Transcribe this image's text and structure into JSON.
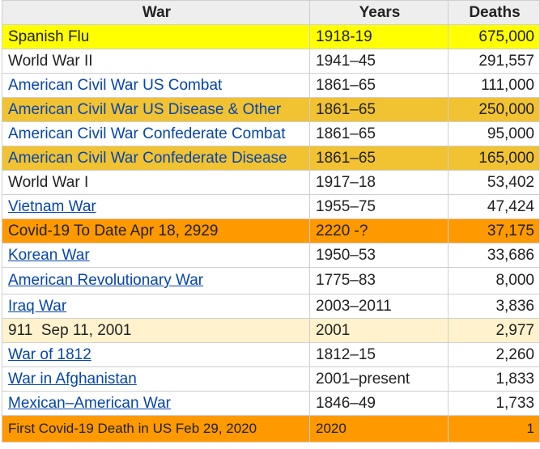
{
  "table": {
    "headers": {
      "war": "War",
      "years": "Years",
      "deaths": "Deaths"
    },
    "rows": [
      {
        "war": "Spanish Flu",
        "years": "1918-19",
        "deaths": "675,000",
        "highlight": "#ffff00",
        "style": "plain"
      },
      {
        "war": "World War II",
        "years": "1941–45",
        "deaths": "291,557",
        "highlight": "none",
        "style": "plain"
      },
      {
        "war": "American Civil War US Combat",
        "years": "1861–65",
        "deaths": "111,000",
        "highlight": "none",
        "style": "link"
      },
      {
        "war": "American Civil War US Disease & Other",
        "years": "1861–65",
        "deaths": "250,000",
        "highlight": "#f1c232",
        "style": "link"
      },
      {
        "war": "American Civil War Confederate Combat",
        "years": "1861–65",
        "deaths": "95,000",
        "highlight": "none",
        "style": "link"
      },
      {
        "war": "American Civil War Confederate Disease",
        "years": "1861–65",
        "deaths": "165,000",
        "highlight": "#f1c232",
        "style": "link"
      },
      {
        "war": "World War I",
        "years": "1917–18",
        "deaths": "53,402",
        "highlight": "none",
        "style": "plain"
      },
      {
        "war": "Vietnam War",
        "years": "1955–75",
        "deaths": "47,424",
        "highlight": "none",
        "style": "link-underlined"
      },
      {
        "war": "Covid-19 To Date Apr 18, 2929",
        "years": "2220 -?",
        "deaths": "37,175",
        "highlight": "#ff9900",
        "style": "plain"
      },
      {
        "war": "Korean War",
        "years": "1950–53",
        "deaths": "33,686",
        "highlight": "none",
        "style": "link-underlined"
      },
      {
        "war": "American Revolutionary War",
        "years": "1775–83",
        "deaths": "8,000",
        "highlight": "none",
        "style": "link-underlined"
      },
      {
        "war": "Iraq War",
        "years": "2003–2011",
        "deaths": "3,836",
        "highlight": "none",
        "style": "link-underlined"
      },
      {
        "war": "911  Sep 11, 2001",
        "years": "2001",
        "deaths": "2,977",
        "highlight": "#fff2cc",
        "style": "plain"
      },
      {
        "war": "War of 1812",
        "years": "1812–15",
        "deaths": "2,260",
        "highlight": "none",
        "style": "link-underlined"
      },
      {
        "war": "War in Afghanistan",
        "years": "2001–present",
        "deaths": "1,833",
        "highlight": "none",
        "style": "link-underlined"
      },
      {
        "war": "Mexican–American War",
        "years": "1846–49",
        "deaths": "1,733",
        "highlight": "none",
        "style": "link-underlined"
      },
      {
        "war": "First Covid-19 Death in US Feb 29, 2020",
        "years": "2020",
        "deaths": "1",
        "highlight": "#ff9900",
        "style": "plain"
      }
    ]
  }
}
